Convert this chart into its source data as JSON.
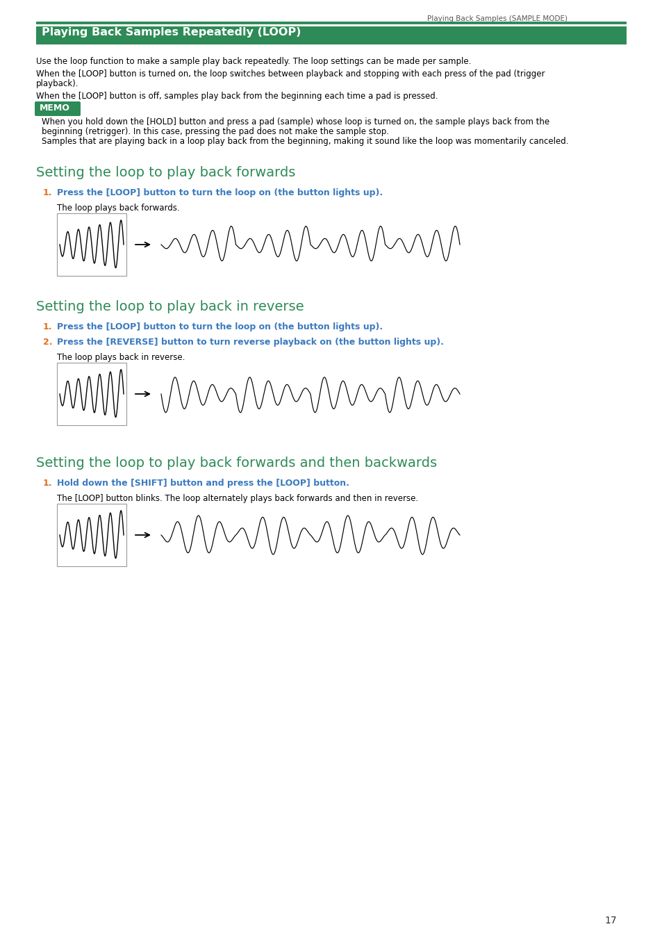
{
  "page_header": "Playing Back Samples (SAMPLE MODE)",
  "header_line_color": "#2e8b57",
  "section1_title": "Playing Back Samples Repeatedly (LOOP)",
  "section1_title_bg": "#2e8b57",
  "section1_title_color": "#ffffff",
  "body_text_color": "#000000",
  "section1_para1": "Use the loop function to make a sample play back repeatedly. The loop settings can be made per sample.",
  "section1_para2_line1": "When the [LOOP] button is turned on, the loop switches between playback and stopping with each press of the pad (trigger",
  "section1_para2_line2": "playback).",
  "section1_para3": "When the [LOOP] button is off, samples play back from the beginning each time a pad is pressed.",
  "memo_bg": "#2e8b57",
  "memo_text": "MEMO",
  "memo_body1_line1": "When you hold down the [HOLD] button and press a pad (sample) whose loop is turned on, the sample plays back from the",
  "memo_body1_line2": "beginning (retrigger). In this case, pressing the pad does not make the sample stop.",
  "memo_body2": "Samples that are playing back in a loop play back from the beginning, making it sound like the loop was momentarily canceled.",
  "section2_title": "Setting the loop to play back forwards",
  "section3_title": "Setting the loop to play back in reverse",
  "section4_title": "Setting the loop to play back forwards and then backwards",
  "section_title_color": "#2e8b57",
  "step_number_color": "#e07020",
  "step_text_color": "#3a7abf",
  "step1_fwd": "Press the [LOOP] button to turn the loop on (the button lights up).",
  "step1_rev": "Press the [LOOP] button to turn the loop on (the button lights up).",
  "step2_rev": "Press the [REVERSE] button to turn reverse playback on (the button lights up).",
  "step1_fwdbwd": "Hold down the [SHIFT] button and press the [LOOP] button.",
  "caption_fwd": "The loop plays back forwards.",
  "caption_rev": "The loop plays back in reverse.",
  "caption_fwdbwd": "The [LOOP] button blinks. The loop alternately plays back forwards and then in reverse.",
  "page_number": "17"
}
